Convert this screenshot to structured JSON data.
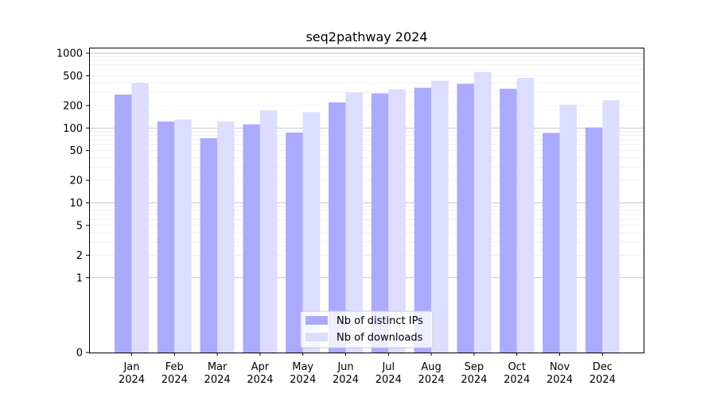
{
  "chart_data": {
    "type": "bar",
    "title": "seq2pathway 2024",
    "xlabel": "",
    "ylabel": "",
    "yscale": "symlog",
    "ylim": [
      0,
      1000
    ],
    "yticks": [
      0,
      1,
      2,
      5,
      10,
      20,
      50,
      100,
      200,
      500,
      1000
    ],
    "ytick_labels": [
      "0",
      "1",
      "2",
      "5",
      "10",
      "20",
      "50",
      "100",
      "200",
      "500",
      "1000"
    ],
    "categories": [
      "Jan\n2024",
      "Feb\n2024",
      "Mar\n2024",
      "Apr\n2024",
      "May\n2024",
      "Jun\n2024",
      "Jul\n2024",
      "Aug\n2024",
      "Sep\n2024",
      "Oct\n2024",
      "Nov\n2024",
      "Dec\n2024"
    ],
    "category_lines": [
      [
        "Jan",
        "2024"
      ],
      [
        "Feb",
        "2024"
      ],
      [
        "Mar",
        "2024"
      ],
      [
        "Apr",
        "2024"
      ],
      [
        "May",
        "2024"
      ],
      [
        "Jun",
        "2024"
      ],
      [
        "Jul",
        "2024"
      ],
      [
        "Aug",
        "2024"
      ],
      [
        "Sep",
        "2024"
      ],
      [
        "Oct",
        "2024"
      ],
      [
        "Nov",
        "2024"
      ],
      [
        "Dec",
        "2024"
      ]
    ],
    "series": [
      {
        "name": "Nb of distinct IPs",
        "color": "#aaaaff",
        "values": [
          280,
          122,
          73,
          112,
          87,
          220,
          290,
          345,
          390,
          335,
          86,
          102
        ]
      },
      {
        "name": "Nb of downloads",
        "color": "#ddddff",
        "values": [
          400,
          130,
          122,
          172,
          163,
          297,
          330,
          430,
          560,
          470,
          205,
          235
        ]
      }
    ],
    "legend_position": "bottom-center",
    "grid": "horizontal"
  }
}
